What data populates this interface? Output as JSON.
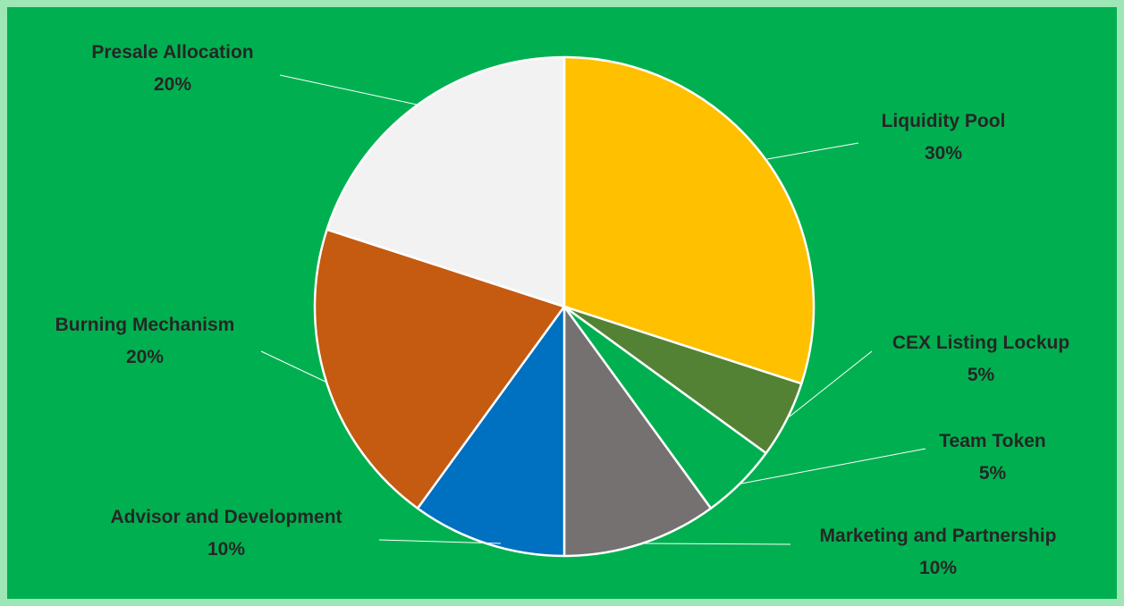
{
  "chart_data": {
    "type": "pie",
    "start_angle_deg": 0,
    "direction": "clockwise",
    "slices": [
      {
        "label": "Liquidity Pool",
        "pct_label": "30%",
        "value": 30,
        "color": "#ffc000"
      },
      {
        "label": "CEX Listing Lockup",
        "pct_label": "5%",
        "value": 5,
        "color": "#548235"
      },
      {
        "label": "Team Token",
        "pct_label": "5%",
        "value": 5,
        "color": "#00b050"
      },
      {
        "label": "Marketing and Partnership",
        "pct_label": "10%",
        "value": 10,
        "color": "#767171"
      },
      {
        "label": "Advisor and Development",
        "pct_label": "10%",
        "value": 10,
        "color": "#0070c0"
      },
      {
        "label": "Burning Mechanism",
        "pct_label": "20%",
        "value": 20,
        "color": "#c55a11"
      },
      {
        "label": "Presale Allocation",
        "pct_label": "20%",
        "value": 20,
        "color": "#f2f2f2"
      }
    ],
    "title": "",
    "legend": "none",
    "data_labels": "outside with leader lines"
  },
  "colors": {
    "background": "#00b050",
    "border": "#9de6b6",
    "label_text": "#262626",
    "slice_outline": "#ffffff"
  }
}
